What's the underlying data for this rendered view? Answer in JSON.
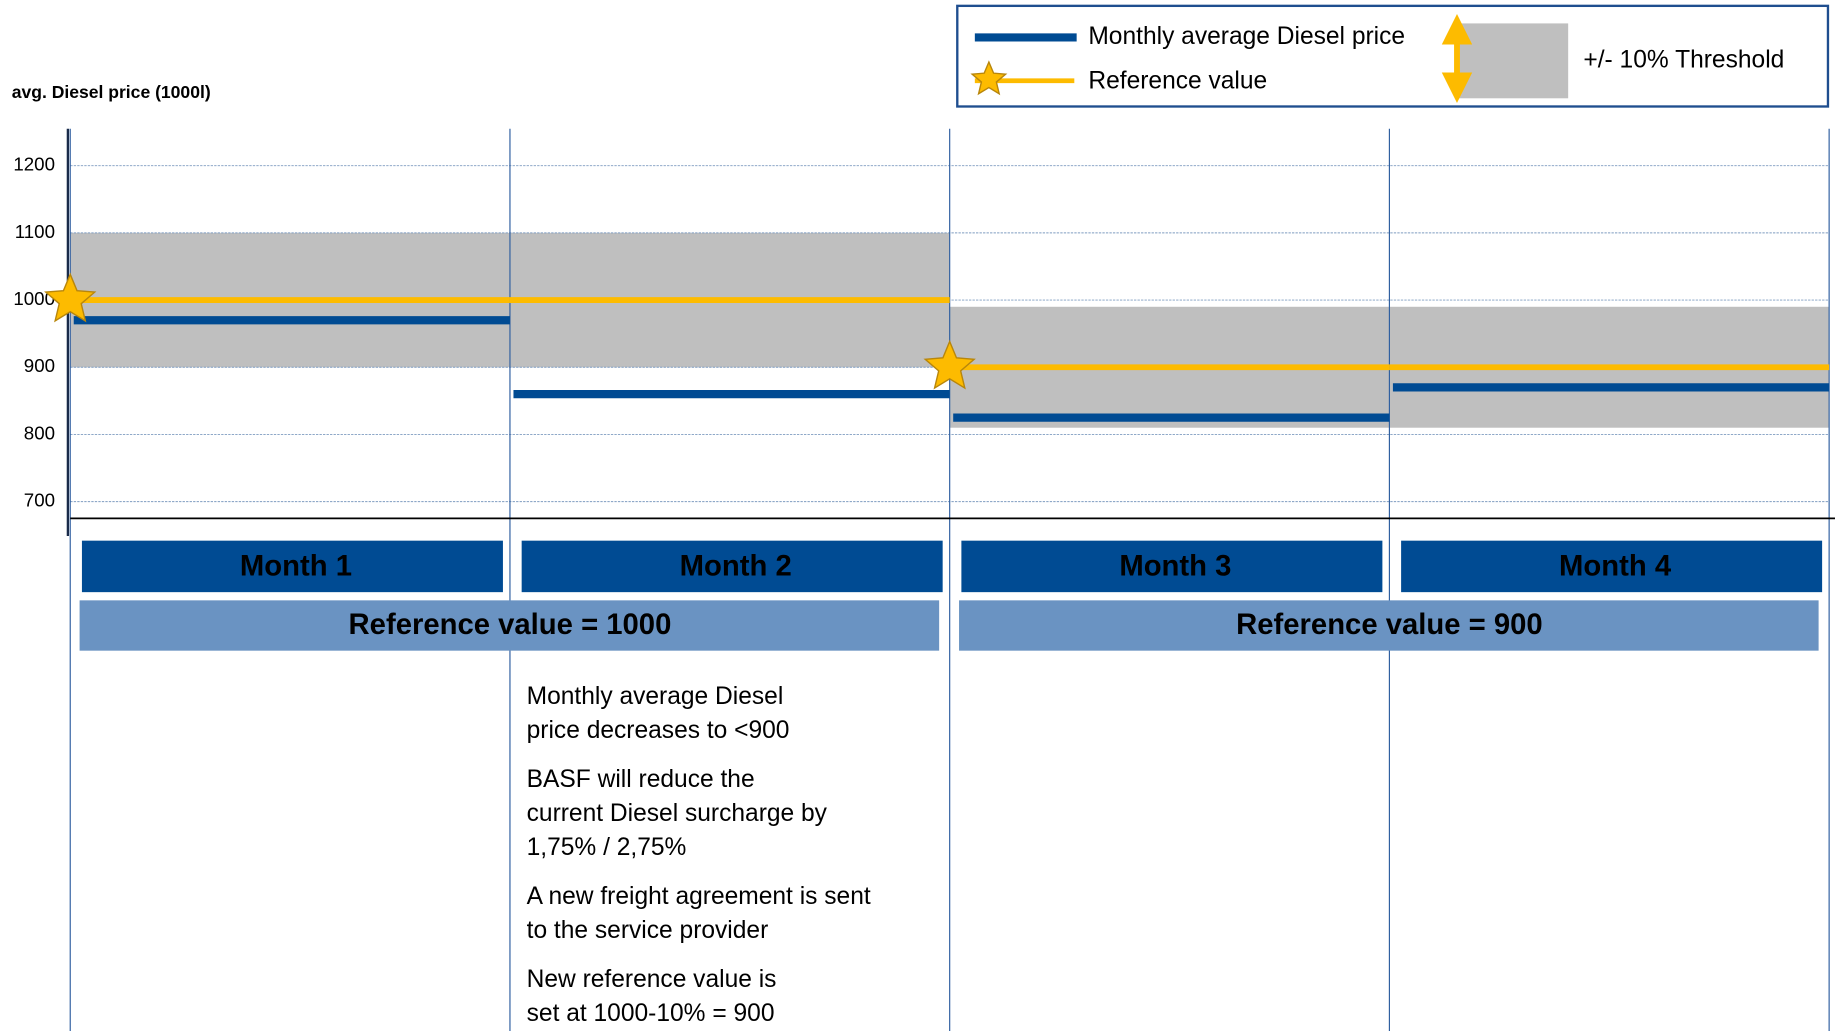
{
  "chart_data": {
    "type": "step",
    "y_label": "avg. Diesel price (1000l)",
    "categories": [
      "Month 1",
      "Month 2",
      "Month 3",
      "Month 4"
    ],
    "series": [
      {
        "name": "Monthly average Diesel price",
        "color": "#004b93",
        "values": [
          970,
          860,
          825,
          870
        ]
      },
      {
        "name": "Reference value",
        "color": "#fdbb00",
        "values": [
          1000,
          1000,
          900,
          900
        ]
      }
    ],
    "threshold": {
      "name": "+/- 10% Threshold",
      "color": "#bfbfbf",
      "lower": [
        900,
        900,
        810,
        810
      ],
      "upper": [
        1100,
        1100,
        990,
        990
      ]
    },
    "reference_labels": [
      "Reference value = 1000",
      "Reference value = 900"
    ],
    "ylim": [
      675,
      1255
    ],
    "yticks": [
      700,
      800,
      900,
      1000,
      1100,
      1200
    ],
    "grid": true,
    "notes": [
      [
        "Monthly average Diesel",
        "price decreases to <900"
      ],
      [
        "BASF will reduce the",
        "current Diesel surcharge by",
        "1,75% / 2,75%"
      ],
      [
        "A new freight agreement is sent",
        "to the service provider"
      ],
      [
        "New reference value is",
        "set at 1000-10% =  900"
      ]
    ]
  }
}
